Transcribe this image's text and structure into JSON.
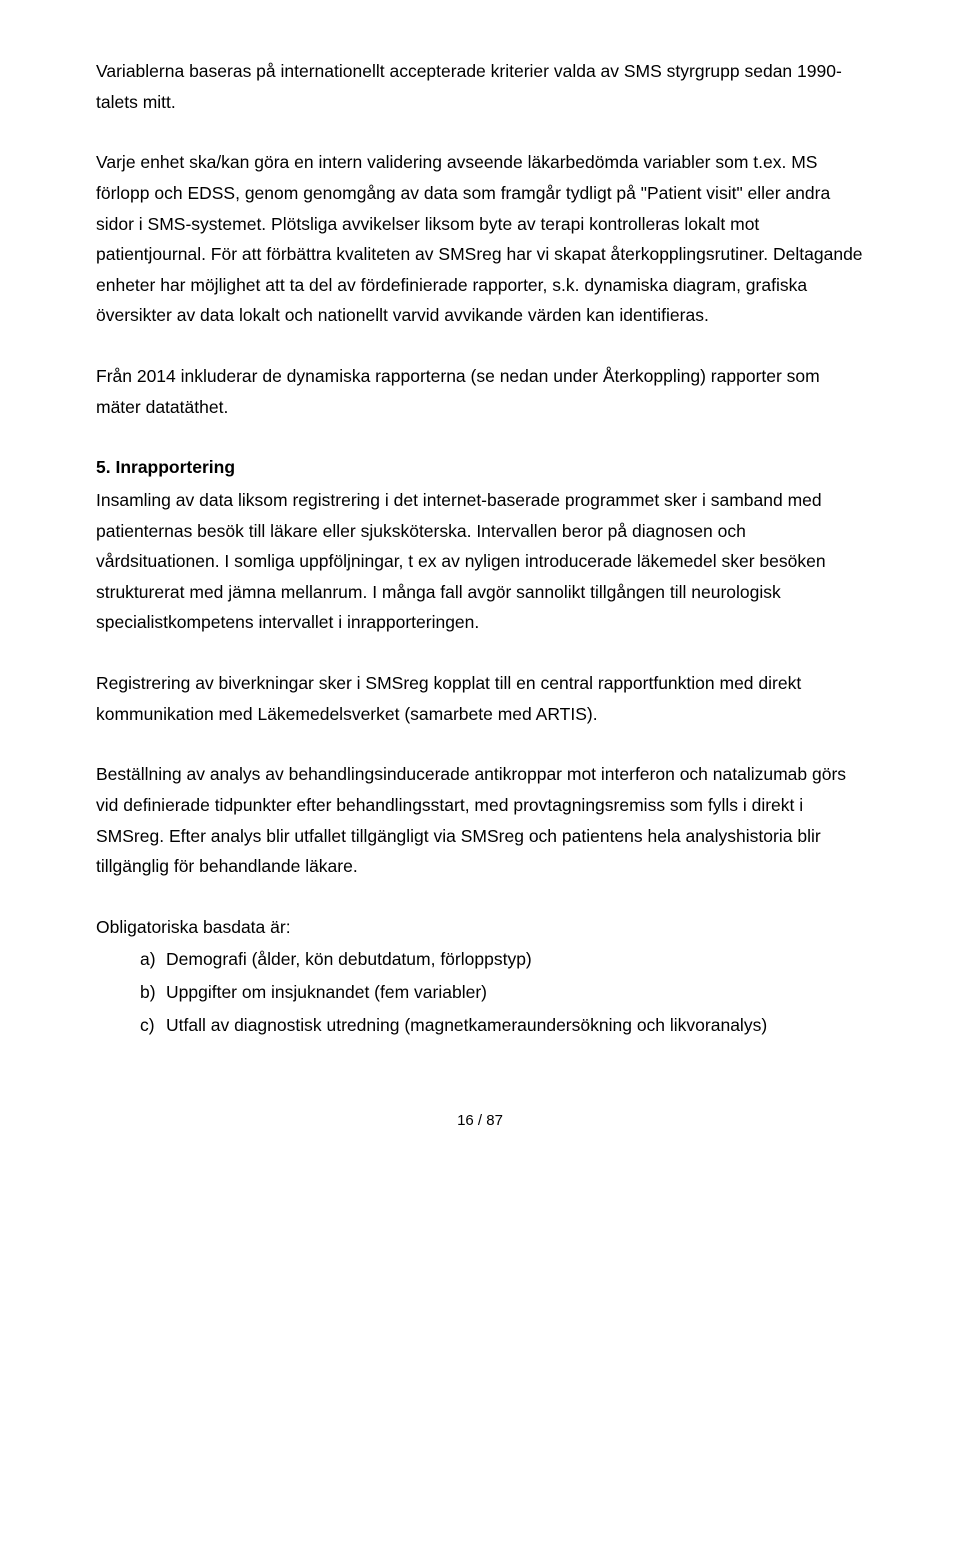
{
  "styles": {
    "font_family": "Arial, Helvetica, sans-serif",
    "body_font_size_pt": 12,
    "heading_font_weight": "bold",
    "text_color": "#000000",
    "background_color": "#ffffff",
    "line_height": 1.75
  },
  "paragraphs": {
    "p1": "Variablerna baseras på internationellt accepterade kriterier valda av SMS styrgrupp sedan 1990-talets mitt.",
    "p2": "Varje enhet ska/kan göra en intern validering avseende läkarbedömda variabler som t.ex. MS förlopp och EDSS, genom genomgång av data som framgår tydligt på \"Patient visit\" eller andra sidor i SMS-systemet. Plötsliga avvikelser liksom byte av terapi kontrolleras lokalt mot patientjournal. För att förbättra kvaliteten av SMSreg har vi skapat återkopplingsrutiner. Deltagande enheter har möjlighet att ta del av fördefinierade rapporter, s.k. dynamiska diagram, grafiska översikter av data lokalt och nationellt varvid avvikande värden kan identifieras.",
    "p3": "Från 2014 inkluderar de dynamiska rapporterna (se nedan under Återkoppling) rapporter som mäter datatäthet.",
    "section5_heading": "5. Inrapportering",
    "p4": "Insamling av data liksom registrering i det internet-baserade programmet sker i samband med patienternas besök till läkare eller sjuksköterska. Intervallen beror på diagnosen och vårdsituationen. I somliga uppföljningar, t ex av nyligen introducerade läkemedel sker besöken strukturerat med jämna mellanrum. I många fall avgör sannolikt tillgången till neurologisk specialistkompetens intervallet i inrapporteringen.",
    "p5": "Registrering av biverkningar sker i SMSreg kopplat till en central rapportfunktion med direkt kommunikation med Läkemedelsverket (samarbete med ARTIS).",
    "p6": "Beställning av analys av behandlingsinducerade antikroppar mot interferon och natalizumab görs vid definierade tidpunkter efter behandlingsstart, med provtagningsremiss som fylls i direkt i SMSreg. Efter analys blir utfallet tillgängligt via SMSreg och patientens hela analyshistoria blir tillgänglig för behandlande läkare.",
    "p7": "Obligatoriska basdata är:",
    "list": {
      "a": {
        "marker": "a)",
        "text": "Demografi (ålder, kön debutdatum, förloppstyp)"
      },
      "b": {
        "marker": "b)",
        "text": "Uppgifter om insjuknandet (fem variabler)"
      },
      "c": {
        "marker": "c)",
        "text": "Utfall av diagnostisk utredning (magnetkameraundersökning och likvoranalys)"
      }
    }
  },
  "footer": {
    "page_indicator": "16 / 87"
  }
}
